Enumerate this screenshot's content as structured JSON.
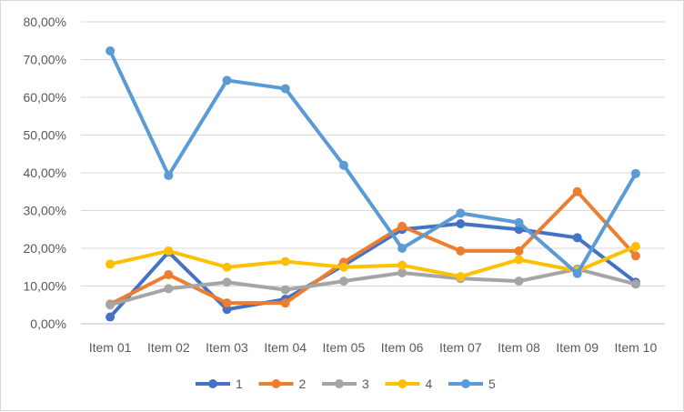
{
  "chart_data": {
    "type": "line",
    "title": "",
    "xlabel": "",
    "ylabel": "",
    "categories": [
      "Item 01",
      "Item 02",
      "Item 03",
      "Item 04",
      "Item 05",
      "Item 06",
      "Item 07",
      "Item 08",
      "Item 09",
      "Item 10"
    ],
    "y_ticks": [
      "0,00%",
      "10,00%",
      "20,00%",
      "30,00%",
      "40,00%",
      "50,00%",
      "60,00%",
      "70,00%",
      "80,00%"
    ],
    "ylim": [
      0,
      80
    ],
    "y_format": "percent",
    "grid": true,
    "legend_position": "bottom",
    "series": [
      {
        "name": "1",
        "color": "#4472C4",
        "values": [
          1.8,
          19.0,
          3.8,
          6.5,
          15.5,
          25.0,
          26.5,
          25.0,
          22.8,
          11.0
        ]
      },
      {
        "name": "2",
        "color": "#ED7D31",
        "values": [
          5.2,
          13.0,
          5.5,
          5.5,
          16.3,
          25.8,
          19.3,
          19.3,
          35.0,
          18.0
        ]
      },
      {
        "name": "3",
        "color": "#A5A5A5",
        "values": [
          5.0,
          9.3,
          11.0,
          9.0,
          11.3,
          13.5,
          12.0,
          11.3,
          14.5,
          10.5
        ]
      },
      {
        "name": "4",
        "color": "#FFC000",
        "values": [
          15.8,
          19.3,
          15.0,
          16.5,
          15.0,
          15.5,
          12.5,
          17.0,
          14.0,
          20.5
        ]
      },
      {
        "name": "5",
        "color": "#5B9BD5",
        "values": [
          72.3,
          39.3,
          64.5,
          62.3,
          42.0,
          20.0,
          29.3,
          26.8,
          13.3,
          39.8
        ]
      }
    ]
  }
}
